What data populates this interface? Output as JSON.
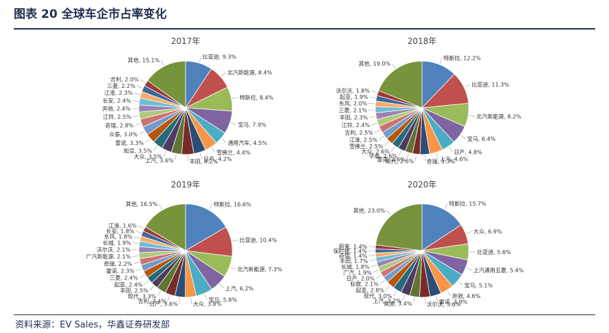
{
  "header": {
    "title": "图表 20 全球车企市占率变化"
  },
  "footer": {
    "source": "资料来源：EV Sales，华鑫证券研发部"
  },
  "chart_data": [
    {
      "type": "pie",
      "title": "2017年",
      "slices": [
        {
          "name": "比亚迪",
          "value": 9.3
        },
        {
          "name": "北汽新能源",
          "value": 8.4
        },
        {
          "name": "特斯拉",
          "value": 8.4
        },
        {
          "name": "宝马",
          "value": 7.9
        },
        {
          "name": "通用汽车",
          "value": 4.5
        },
        {
          "name": "雪佛兰",
          "value": 4.4
        },
        {
          "name": "日产",
          "value": 4.2
        },
        {
          "name": "丰田",
          "value": 4.2
        },
        {
          "name": "上汽",
          "value": 3.6
        },
        {
          "name": "大众",
          "value": 3.5
        },
        {
          "name": "知豆",
          "value": 3.5
        },
        {
          "name": "雷诺",
          "value": 3.3
        },
        {
          "name": "众泰",
          "value": 3.0
        },
        {
          "name": "奇瑞",
          "value": 2.8
        },
        {
          "name": "江铃",
          "value": 2.5
        },
        {
          "name": "奔驰",
          "value": 2.4
        },
        {
          "name": "长安",
          "value": 2.4
        },
        {
          "name": "江淮",
          "value": 2.3
        },
        {
          "name": "三菱",
          "value": 2.2
        },
        {
          "name": "吉利",
          "value": 2.0
        },
        {
          "name": "其他",
          "value": 15.1
        }
      ]
    },
    {
      "type": "pie",
      "title": "2018年",
      "slices": [
        {
          "name": "特斯拉",
          "value": 12.2
        },
        {
          "name": "比亚迪",
          "value": 11.3
        },
        {
          "name": "北汽新能源",
          "value": 8.2
        },
        {
          "name": "宝马",
          "value": 6.4
        },
        {
          "name": "日产",
          "value": 4.8
        },
        {
          "name": "上汽",
          "value": 4.6
        },
        {
          "name": "奇瑞",
          "value": 3.3
        },
        {
          "name": "现代",
          "value": 2.6
        },
        {
          "name": "雷诺",
          "value": 2.6
        },
        {
          "name": "华泰",
          "value": 2.6
        },
        {
          "name": "大众",
          "value": 2.6
        },
        {
          "name": "雪佛兰",
          "value": 2.5
        },
        {
          "name": "江淮",
          "value": 2.5
        },
        {
          "name": "吉利",
          "value": 2.5
        },
        {
          "name": "江铃",
          "value": 2.4
        },
        {
          "name": "丰田",
          "value": 2.3
        },
        {
          "name": "三菱",
          "value": 2.1
        },
        {
          "name": "东风",
          "value": 2.0
        },
        {
          "name": "起亚",
          "value": 1.9
        },
        {
          "name": "沃尔沃",
          "value": 1.8
        },
        {
          "name": "其他",
          "value": 19.0
        }
      ]
    },
    {
      "type": "pie",
      "title": "2019年",
      "slices": [
        {
          "name": "特斯拉",
          "value": 16.6
        },
        {
          "name": "比亚迪",
          "value": 10.4
        },
        {
          "name": "北汽新能源",
          "value": 7.3
        },
        {
          "name": "上汽",
          "value": 6.2
        },
        {
          "name": "宝马",
          "value": 5.8
        },
        {
          "name": "大众",
          "value": 3.8
        },
        {
          "name": "日产",
          "value": 3.6
        },
        {
          "name": "吉利",
          "value": 3.4
        },
        {
          "name": "现代",
          "value": 3.3
        },
        {
          "name": "丰田",
          "value": 2.5
        },
        {
          "name": "起亚",
          "value": 2.4
        },
        {
          "name": "三菱",
          "value": 2.4
        },
        {
          "name": "雷诺",
          "value": 2.3
        },
        {
          "name": "奇瑞",
          "value": 2.2
        },
        {
          "name": "广汽新能源",
          "value": 2.1
        },
        {
          "name": "沃尔沃",
          "value": 2.1
        },
        {
          "name": "长城",
          "value": 1.9
        },
        {
          "name": "东风",
          "value": 1.8
        },
        {
          "name": "长安",
          "value": 1.8
        },
        {
          "name": "江淮",
          "value": 1.6
        },
        {
          "name": "其他",
          "value": 16.5
        }
      ]
    },
    {
      "type": "pie",
      "title": "2020年",
      "slices": [
        {
          "name": "特斯拉",
          "value": 15.7
        },
        {
          "name": "大众",
          "value": 6.9
        },
        {
          "name": "比亚迪",
          "value": 5.6
        },
        {
          "name": "上汽通用五菱",
          "value": 5.4
        },
        {
          "name": "宝马",
          "value": 5.1
        },
        {
          "name": "奔驰",
          "value": 4.6
        },
        {
          "name": "雷诺",
          "value": 3.9
        },
        {
          "name": "沃尔沃",
          "value": 3.6
        },
        {
          "name": "奥迪",
          "value": 3.4
        },
        {
          "name": "上汽",
          "value": 3.2
        },
        {
          "name": "现代",
          "value": 3.0
        },
        {
          "name": "起亚",
          "value": 2.8
        },
        {
          "name": "标致",
          "value": 2.1
        },
        {
          "name": "日产",
          "value": 2.0
        },
        {
          "name": "广汽",
          "value": 1.9
        },
        {
          "name": "长城",
          "value": 1.8
        },
        {
          "name": "丰田",
          "value": 1.7
        },
        {
          "name": "奇瑞",
          "value": 1.4
        },
        {
          "name": "保时捷",
          "value": 1.4
        },
        {
          "name": "蔚来",
          "value": 1.4
        },
        {
          "name": "其他",
          "value": 23.0
        }
      ]
    }
  ],
  "colors": [
    "#4f81bd",
    "#c0504d",
    "#9bbb59",
    "#8064a2",
    "#4bacc6",
    "#f79646",
    "#2c4d75",
    "#772c2a",
    "#5f7530",
    "#4d3b62",
    "#276a7c",
    "#b65708",
    "#729aca",
    "#cd7371",
    "#afc97a",
    "#9983b5",
    "#6fbdd1",
    "#f9ab6b",
    "#3a679c",
    "#9e3b38",
    "#77933c"
  ]
}
